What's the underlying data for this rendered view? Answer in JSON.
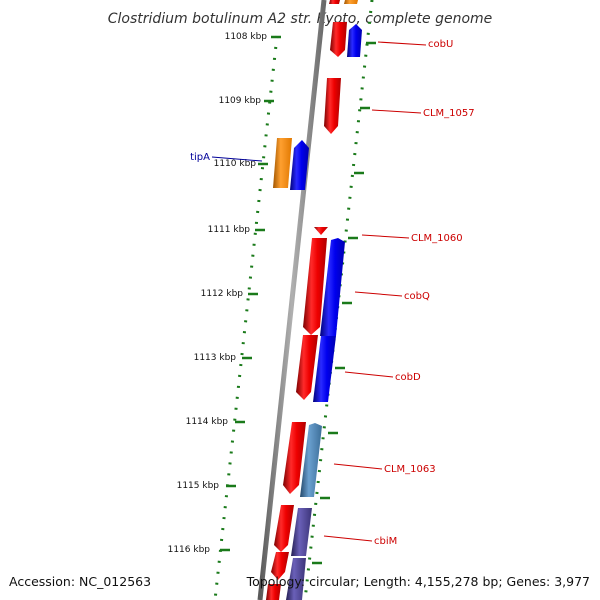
{
  "title": "Clostridium botulinum A2 str. Kyoto, complete genome",
  "accession": "Accession: NC_012563",
  "topology": "Topology: circular; Length: 4,155,278 bp; Genes: 3,977",
  "colors": {
    "forward_gene": "#ee0000",
    "reverse_gene": "#0000ee",
    "orange_gene": "#ff8c00",
    "steel_gene": "#4682b4",
    "slate_gene": "#483d8b",
    "label_red": "#cc0000",
    "label_blue": "#000099",
    "ticks": "#1a7a1a",
    "backbone": "#808080"
  },
  "kbp_labels": [
    "1108 kbp",
    "1109 kbp",
    "1110 kbp",
    "1111 kbp",
    "1112 kbp",
    "1113 kbp",
    "1114 kbp",
    "1115 kbp",
    "1116 kbp"
  ],
  "gene_labels": [
    {
      "name": "cobU",
      "color": "red"
    },
    {
      "name": "CLM_1057",
      "color": "red"
    },
    {
      "name": "tipA",
      "color": "blue"
    },
    {
      "name": "CLM_1060",
      "color": "red"
    },
    {
      "name": "cobQ",
      "color": "red"
    },
    {
      "name": "cobD",
      "color": "red"
    },
    {
      "name": "CLM_1063",
      "color": "red"
    },
    {
      "name": "cbiM",
      "color": "red"
    }
  ]
}
